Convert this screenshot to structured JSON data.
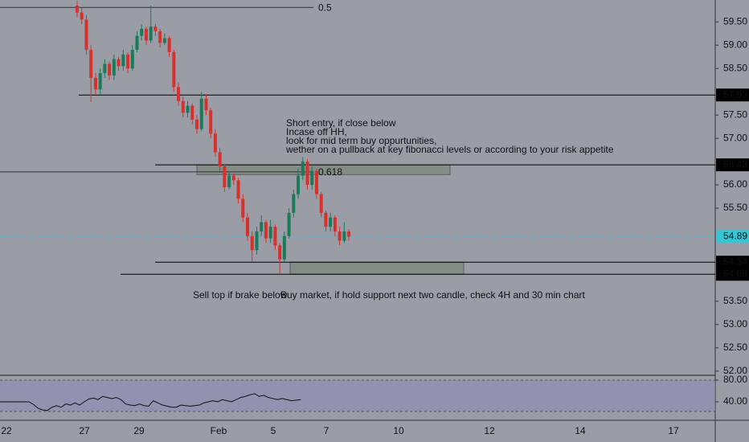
{
  "chart_data": {
    "type": "candlestick",
    "x_tick_labels": [
      "22",
      "27",
      "29",
      "Feb",
      "5",
      "7",
      "10",
      "12",
      "14",
      "17"
    ],
    "ylim": [
      51.98,
      59.97
    ],
    "yticks": [
      {
        "value": 59.5,
        "label": "59.50"
      },
      {
        "value": 59,
        "label": "59.00"
      },
      {
        "value": 58.5,
        "label": "58.50"
      },
      {
        "value": 57.5,
        "label": "57.50"
      },
      {
        "value": 57,
        "label": "57.00"
      },
      {
        "value": 56,
        "label": "56.00"
      },
      {
        "value": 55.5,
        "label": "55.50"
      },
      {
        "value": 53.5,
        "label": "53.50"
      },
      {
        "value": 53,
        "label": "53.00"
      },
      {
        "value": 52.5,
        "label": "52.50"
      },
      {
        "value": 52,
        "label": "52.00"
      }
    ],
    "open": [
      59.85,
      59.7,
      59.55,
      58.9,
      58.3,
      58.05,
      58.4,
      58.6,
      58.35,
      58.7,
      58.55,
      58.8,
      58.5,
      58.9,
      59.2,
      59.35,
      59.1,
      59.4,
      59.3,
      59.05,
      59.15,
      58.85,
      58.1,
      57.8,
      57.55,
      57.7,
      57.4,
      57.2,
      57.85,
      57.6,
      57.1,
      56.7,
      56.4,
      55.95,
      56.2,
      56.1,
      55.7,
      55.3,
      54.9,
      54.6,
      55.0,
      55.2,
      54.85,
      55.1,
      54.7,
      54.4,
      54.9,
      55.4,
      55.8,
      56.2,
      56.5,
      56.0,
      56.3,
      55.8,
      55.4,
      55.1,
      55.3,
      55.0,
      54.8,
      55.0
    ],
    "high": [
      59.95,
      59.8,
      59.65,
      59.0,
      58.4,
      58.5,
      58.7,
      58.65,
      58.8,
      58.75,
      58.9,
      58.85,
      59.0,
      59.3,
      59.45,
      59.4,
      59.85,
      59.45,
      59.35,
      59.25,
      59.2,
      58.9,
      58.2,
      57.9,
      57.8,
      57.75,
      57.5,
      58.0,
      57.95,
      57.65,
      57.2,
      56.8,
      56.45,
      56.3,
      56.25,
      56.15,
      55.8,
      55.4,
      55.0,
      55.1,
      55.35,
      55.25,
      55.25,
      55.15,
      54.75,
      55.0,
      55.5,
      55.9,
      56.35,
      56.6,
      56.55,
      56.4,
      56.35,
      55.85,
      55.45,
      55.4,
      55.35,
      55.1,
      55.2,
      55.05
    ],
    "low": [
      59.6,
      59.45,
      58.8,
      57.78,
      57.95,
      57.95,
      58.3,
      58.25,
      58.25,
      58.45,
      58.45,
      58.4,
      58.45,
      58.85,
      59.1,
      59.0,
      59.05,
      59.2,
      58.95,
      59.0,
      58.75,
      58.0,
      57.7,
      57.45,
      57.45,
      57.3,
      57.1,
      57.15,
      57.5,
      57.0,
      56.6,
      56.3,
      55.85,
      55.9,
      56.0,
      55.6,
      55.2,
      54.8,
      54.35,
      54.5,
      54.9,
      54.75,
      54.75,
      54.6,
      54.08,
      54.35,
      54.85,
      55.3,
      55.7,
      56.1,
      55.9,
      55.9,
      55.7,
      55.3,
      55.0,
      55.0,
      54.9,
      54.7,
      54.75,
      54.8
    ],
    "close": [
      59.7,
      59.55,
      58.9,
      58.3,
      58.05,
      58.4,
      58.6,
      58.35,
      58.7,
      58.55,
      58.8,
      58.5,
      58.9,
      59.2,
      59.35,
      59.1,
      59.4,
      59.3,
      59.05,
      59.15,
      58.85,
      58.1,
      57.8,
      57.55,
      57.7,
      57.4,
      57.2,
      57.85,
      57.6,
      57.1,
      56.7,
      56.4,
      55.95,
      56.2,
      56.1,
      55.7,
      55.3,
      54.9,
      54.6,
      55.0,
      55.2,
      54.85,
      55.1,
      54.7,
      54.4,
      54.9,
      55.4,
      55.8,
      56.2,
      56.5,
      56.0,
      56.3,
      55.8,
      55.4,
      55.1,
      55.3,
      55.0,
      54.8,
      55.0,
      54.89
    ],
    "up_color": "#1b7a5a",
    "down_color": "#d9302c",
    "levels": [
      57.93,
      56.43,
      54.34,
      54.08
    ],
    "last_price": 54.89,
    "fib_levels": [
      {
        "value": 59.81,
        "label": "0.5"
      },
      {
        "value": 56.28,
        "label": "0.618"
      }
    ],
    "zones": [
      [
        56.43,
        56.22
      ],
      [
        54.34,
        54.08
      ]
    ],
    "note": [
      "Short entry, if close below",
      "Incase off HH,",
      "look for mid term buy oppurtunities,",
      "wether on a pullback at key fibonacci levels or according to your risk appetite"
    ],
    "annotations": [
      "Sell top if brake below",
      "Buy market, if hold support next two candle, check 4H and 30 min chart"
    ],
    "oscillator": {
      "ylim": [
        7.4,
        87.4
      ],
      "yticks": [
        {
          "value": 80,
          "label": "80.00"
        },
        {
          "value": 40,
          "label": "40.00"
        }
      ],
      "values": [
        40,
        35,
        28,
        25,
        24,
        30,
        33,
        30,
        36,
        34,
        38,
        34,
        40,
        45,
        47,
        44,
        50,
        48,
        46,
        48,
        44,
        36,
        34,
        33,
        36,
        33,
        32,
        42,
        38,
        34,
        32,
        30,
        30,
        34,
        33,
        32,
        33,
        34,
        38,
        40,
        42,
        40,
        44,
        42,
        40,
        44,
        48,
        50,
        53,
        55,
        50,
        52,
        48,
        46,
        44,
        46,
        44,
        42,
        43,
        44
      ]
    }
  }
}
